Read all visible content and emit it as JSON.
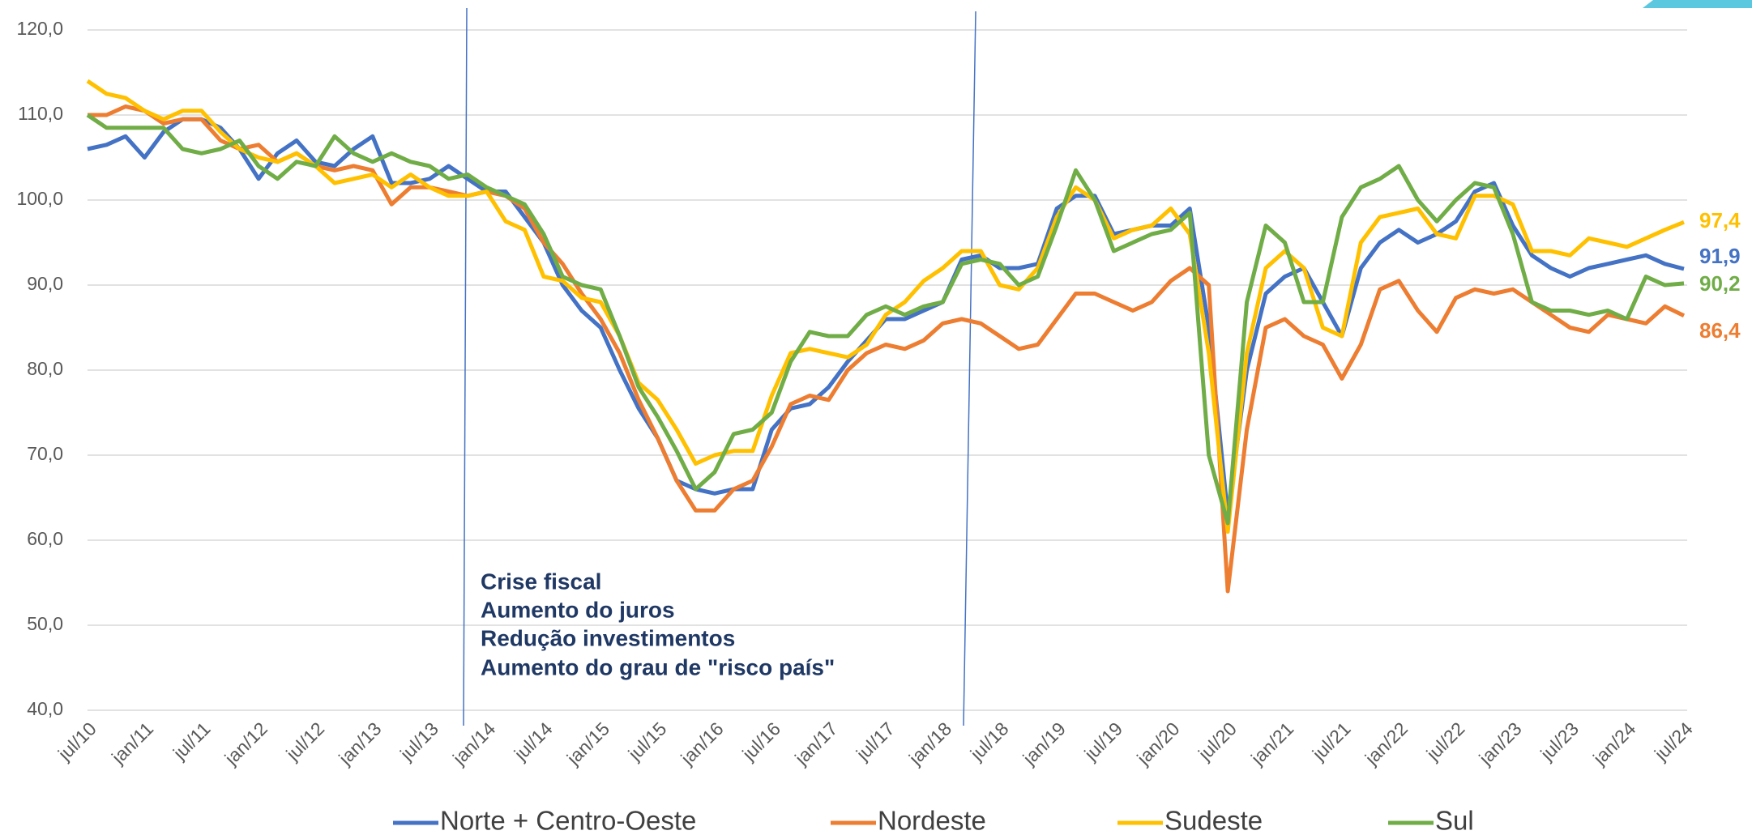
{
  "chart_data": {
    "type": "line",
    "categories": [
      "jul/10",
      null,
      null,
      "jan/11",
      null,
      null,
      "jul/11",
      null,
      null,
      "jan/12",
      null,
      null,
      "jul/12",
      null,
      null,
      "jan/13",
      null,
      null,
      "jul/13",
      null,
      null,
      "jan/14",
      null,
      null,
      "jul/14",
      null,
      null,
      "jan/15",
      null,
      null,
      "jul/15",
      null,
      null,
      "jan/16",
      null,
      null,
      "jul/16",
      null,
      null,
      "jan/17",
      null,
      null,
      "jul/17",
      null,
      null,
      "jan/18",
      null,
      null,
      "jul/18",
      null,
      null,
      "jan/19",
      null,
      null,
      "jul/19",
      null,
      null,
      "jan/20",
      null,
      null,
      "jul/20",
      null,
      null,
      "jan/21",
      null,
      null,
      "jul/21",
      null,
      null,
      "jan/22",
      null,
      null,
      "jul/22",
      null,
      null,
      "jan/23",
      null,
      null,
      "jul/23",
      null,
      null,
      "jan/24",
      null,
      null,
      "jul/24"
    ],
    "series": [
      {
        "name": "Norte + Centro-Oeste",
        "color": "#4472c4",
        "last_value_label": "91,9",
        "values": [
          106,
          106.5,
          107.5,
          105,
          108,
          109.5,
          109.5,
          108.5,
          106,
          102.5,
          105.5,
          107,
          104.5,
          104,
          106,
          107.5,
          102,
          102,
          102.5,
          104,
          102.5,
          101,
          101,
          98,
          95,
          90,
          87,
          85,
          80,
          75.5,
          72,
          67,
          66,
          65.5,
          66,
          66,
          73,
          75.5,
          76,
          78,
          81,
          83.5,
          86,
          86,
          87,
          88,
          93,
          93.5,
          92,
          92,
          92.5,
          99,
          100.5,
          100.5,
          96,
          96.5,
          97,
          97,
          99,
          85,
          63,
          80,
          89,
          91,
          92,
          88,
          84,
          92,
          95,
          96.5,
          95,
          96,
          97.5,
          101,
          102,
          97,
          93.5,
          92,
          91,
          92,
          92.5,
          93,
          93.5,
          92.5,
          91.9
        ]
      },
      {
        "name": "Nordeste",
        "color": "#ed7d31",
        "last_value_label": "86,4",
        "values": [
          110,
          110,
          111,
          110.5,
          109,
          109.5,
          109.5,
          107,
          106,
          106.5,
          104.5,
          105.5,
          104,
          103.5,
          104,
          103.5,
          99.5,
          101.5,
          101.5,
          101,
          100.5,
          101,
          100.5,
          99,
          95,
          92.5,
          89,
          86,
          82,
          76.5,
          72,
          67,
          63.5,
          63.5,
          66,
          67,
          71,
          76,
          77,
          76.5,
          80,
          82,
          83,
          82.5,
          83.5,
          85.5,
          86,
          85.5,
          84,
          82.5,
          83,
          86,
          89,
          89,
          88,
          87,
          88,
          90.5,
          92,
          90,
          54,
          73,
          85,
          86,
          84,
          83,
          79,
          83,
          89.5,
          90.5,
          87,
          84.5,
          88.5,
          89.5,
          89,
          89.5,
          88,
          86.5,
          85,
          84.5,
          86.5,
          86,
          85.5,
          87.5,
          86.4
        ]
      },
      {
        "name": "Sudeste",
        "color": "#ffc000",
        "last_value_label": "97,4",
        "values": [
          114,
          112.5,
          112,
          110.5,
          109.5,
          110.5,
          110.5,
          108,
          106,
          105,
          104.5,
          105.5,
          104,
          102,
          102.5,
          103,
          101.5,
          103,
          101.5,
          100.5,
          100.5,
          101,
          97.5,
          96.5,
          91,
          90.5,
          88.5,
          88,
          84,
          78.5,
          76.5,
          73,
          69,
          70,
          70.5,
          70.5,
          77,
          82,
          82.5,
          82,
          81.5,
          83,
          86.5,
          88,
          90.5,
          92,
          94,
          94,
          90,
          89.5,
          92,
          98,
          101.5,
          100,
          95.5,
          96.5,
          97,
          99,
          96,
          82,
          61,
          82,
          92,
          94,
          92,
          85,
          84,
          95,
          98,
          98.5,
          99,
          96,
          95.5,
          100.5,
          100.5,
          99.5,
          94,
          94,
          93.5,
          95.5,
          95,
          94.5,
          95.5,
          96.5,
          97.4
        ]
      },
      {
        "name": "Sul",
        "color": "#70ad47",
        "last_value_label": "90,2",
        "values": [
          110,
          108.5,
          108.5,
          108.5,
          108.5,
          106,
          105.5,
          106,
          107,
          104,
          102.5,
          104.5,
          104,
          107.5,
          105.5,
          104.5,
          105.5,
          104.5,
          104,
          102.5,
          103,
          101.5,
          100.5,
          99.5,
          96,
          91,
          90,
          89.5,
          84,
          78,
          74.5,
          70.5,
          66,
          68,
          72.5,
          73,
          75,
          81,
          84.5,
          84,
          84,
          86.5,
          87.5,
          86.5,
          87.5,
          88,
          92.5,
          93,
          92.5,
          90,
          91,
          97,
          103.5,
          100,
          94,
          95,
          96,
          96.5,
          98.5,
          70,
          62,
          88,
          97,
          95,
          88,
          88,
          98,
          101.5,
          102.5,
          104,
          100,
          97.5,
          100,
          102,
          101.5,
          96,
          88,
          87,
          87,
          86.5,
          87,
          86,
          91,
          90,
          90.2
        ]
      }
    ],
    "ylim": [
      40,
      120
    ],
    "yticks": [
      {
        "value": 40,
        "label": "40,0"
      },
      {
        "value": 50,
        "label": "50,0"
      },
      {
        "value": 60,
        "label": "60,0"
      },
      {
        "value": 70,
        "label": "70,0"
      },
      {
        "value": 80,
        "label": "80,0"
      },
      {
        "value": 90,
        "label": "90,0"
      },
      {
        "value": 100,
        "label": "100,0"
      },
      {
        "value": 110,
        "label": "110,0"
      },
      {
        "value": 120,
        "label": "120,0"
      }
    ],
    "grid": true,
    "legend": "bottom",
    "annotation": [
      "Crise fiscal",
      "Aumento do juros",
      "Redução investimentos",
      "Aumento do grau de \"risco país\""
    ]
  }
}
